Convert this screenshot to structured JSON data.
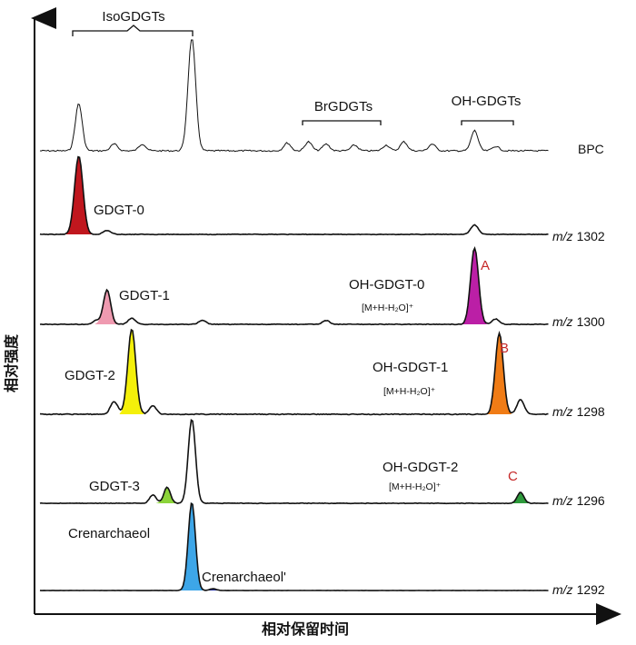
{
  "chart_data": {
    "type": "chromatogram",
    "x_axis_title": "相对保留时间",
    "y_axis_title": "相对强度",
    "group_labels": [
      "IsoGDGTs",
      "BrGDGTs",
      "OH-GDGTs"
    ],
    "traces": [
      {
        "ion": "BPC",
        "peaks": [
          {
            "x": 0.12,
            "height": 0.42
          },
          {
            "x": 0.22,
            "height": 0.06
          },
          {
            "x": 0.3,
            "height": 0.06
          },
          {
            "x": 0.44,
            "height": 1.0
          },
          {
            "x": 0.71,
            "height": 0.07
          },
          {
            "x": 0.77,
            "height": 0.08
          },
          {
            "x": 0.82,
            "height": 0.06
          },
          {
            "x": 0.9,
            "height": 0.05
          },
          {
            "x": 0.99,
            "height": 0.05
          },
          {
            "x": 1.04,
            "height": 0.08
          },
          {
            "x": 1.12,
            "height": 0.06
          },
          {
            "x": 1.24,
            "height": 0.18
          },
          {
            "x": 1.3,
            "height": 0.04
          }
        ]
      },
      {
        "ion": "1302",
        "peaks": [
          {
            "x": 0.12,
            "height": 1.0,
            "label": "GDGT-0",
            "color": "#c0171e"
          },
          {
            "x": 0.2,
            "height": 0.05
          },
          {
            "x": 1.24,
            "height": 0.12
          }
        ]
      },
      {
        "ion": "1300",
        "peaks": [
          {
            "x": 0.17,
            "height": 0.05
          },
          {
            "x": 0.2,
            "height": 0.45,
            "label": "GDGT-1",
            "color": "#ef9ab0"
          },
          {
            "x": 0.27,
            "height": 0.08
          },
          {
            "x": 0.47,
            "height": 0.05
          },
          {
            "x": 0.82,
            "height": 0.05
          },
          {
            "x": 1.24,
            "height": 1.0,
            "label": "OH-GDGT-0",
            "adduct": "[M+H-H₂O]⁺",
            "peak_letter": "A",
            "color": "#bb1fa6"
          },
          {
            "x": 1.3,
            "height": 0.07
          }
        ]
      },
      {
        "ion": "1298",
        "peaks": [
          {
            "x": 0.22,
            "height": 0.15
          },
          {
            "x": 0.27,
            "height": 1.0,
            "label": "GDGT-2",
            "color": "#f4f00a"
          },
          {
            "x": 0.33,
            "height": 0.1
          },
          {
            "x": 1.31,
            "height": 0.95,
            "label": "OH-GDGT-1",
            "adduct": "[M+H-H₂O]⁺",
            "peak_letter": "B",
            "color": "#f07c16"
          },
          {
            "x": 1.37,
            "height": 0.17
          }
        ]
      },
      {
        "ion": "1296",
        "peaks": [
          {
            "x": 0.33,
            "height": 0.1
          },
          {
            "x": 0.37,
            "height": 0.19,
            "label": "GDGT-3",
            "color": "#8cd43a"
          },
          {
            "x": 0.44,
            "height": 1.0
          },
          {
            "x": 1.37,
            "height": 0.13,
            "peak_letter": "C",
            "color": "#2e9a3c"
          },
          {
            "x_label_only": true,
            "label": "OH-GDGT-2",
            "adduct": "[M+H-H₂O]⁺"
          }
        ]
      },
      {
        "ion": "1292",
        "peaks": [
          {
            "x": 0.44,
            "height": 1.0,
            "label": "Crenarchaeol",
            "color": "#3da6e8"
          },
          {
            "x": 0.5,
            "height": 0.02,
            "label": "Crenarchaeol'",
            "color": "#2733a6"
          }
        ]
      }
    ]
  },
  "labels": {
    "iso": "IsoGDGTs",
    "br": "BrGDGTs",
    "oh": "OH-GDGTs",
    "bpc": "BPC",
    "mz_prefix": "m/z",
    "ion_1302": "1302",
    "ion_1300": "1300",
    "ion_1298": "1298",
    "ion_1296": "1296",
    "ion_1292": "1292",
    "gdgt0": "GDGT-0",
    "gdgt1": "GDGT-1",
    "gdgt2": "GDGT-2",
    "gdgt3": "GDGT-3",
    "cren": "Crenarchaeol",
    "cren_prime": "Crenarchaeol'",
    "ohgdgt0": "OH-GDGT-0",
    "ohgdgt1": "OH-GDGT-1",
    "ohgdgt2": "OH-GDGT-2",
    "adduct": "[M+H-H₂O]⁺",
    "peak_a": "A",
    "peak_b": "B",
    "peak_c": "C",
    "xtitle": "相对保留时间",
    "ytitle": "相对强度"
  }
}
